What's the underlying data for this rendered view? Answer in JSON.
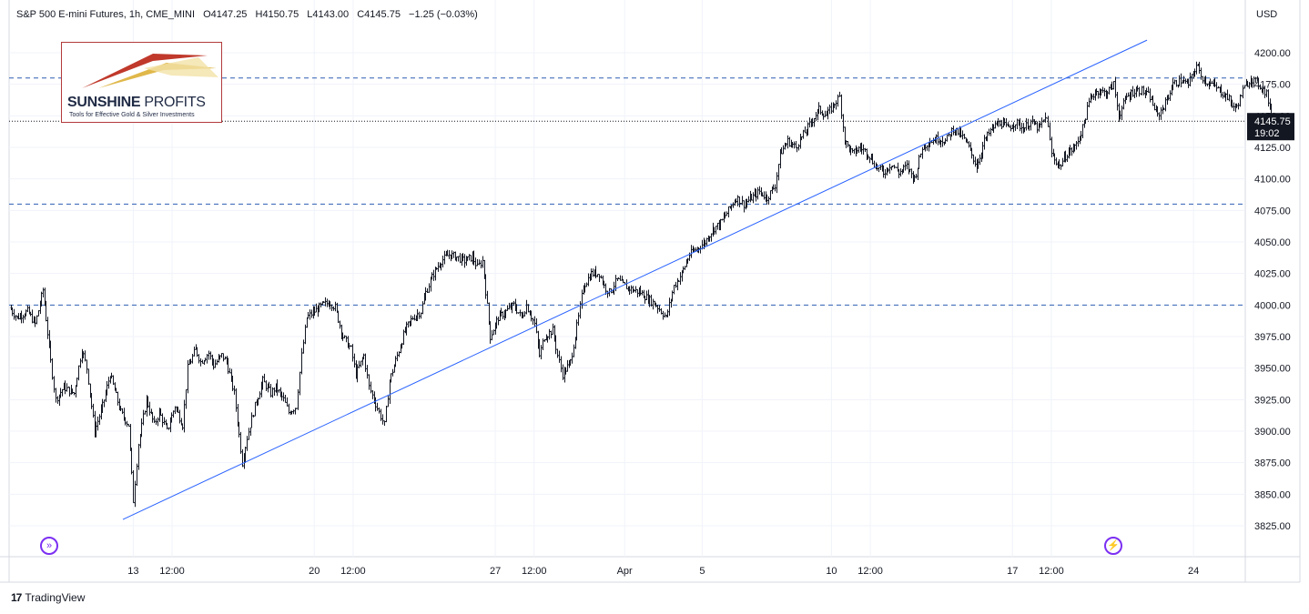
{
  "header": {
    "symbol": "S&P 500 E-mini Futures, 1h, CME_MINI",
    "open": "O4147.25",
    "high": "H4150.75",
    "low": "L4143.00",
    "close": "C4145.75",
    "change": "−1.25 (−0.03%)"
  },
  "currency": "USD",
  "logo": {
    "name_bold": "SUNSHINE",
    "name_light": " PROFITS",
    "tagline": "Tools for Effective Gold & Silver Investments"
  },
  "price_label": {
    "price": "4145.75",
    "countdown": "19:02"
  },
  "branding": "TradingView",
  "chart_data": {
    "type": "candlestick",
    "title": "S&P 500 E-mini Futures, 1h, CME_MINI",
    "y_ticks": [
      3825,
      3850,
      3875,
      3900,
      3925,
      3950,
      3975,
      4000,
      4025,
      4050,
      4075,
      4100,
      4125,
      4150,
      4175,
      4200
    ],
    "y_tick_labels": [
      "3825.00",
      "3850.00",
      "3875.00",
      "3900.00",
      "3925.00",
      "3950.00",
      "3975.00",
      "4000.00",
      "4025.00",
      "4050.00",
      "4075.00",
      "4100.00",
      "4125.00",
      "4150.00",
      "4175.00",
      "4200.00"
    ],
    "ylim": [
      3806,
      4230
    ],
    "x_ticks": [
      {
        "label": "13",
        "day": 13.0
      },
      {
        "label": "12:00",
        "day": 14.5
      },
      {
        "label": "20",
        "day": 20.0
      },
      {
        "label": "12:00",
        "day": 21.5
      },
      {
        "label": "27",
        "day": 27.0
      },
      {
        "label": "12:00",
        "day": 28.5
      },
      {
        "label": "Apr",
        "day": 32.0
      },
      {
        "label": "5",
        "day": 35.0
      },
      {
        "label": "10",
        "day": 40.0
      },
      {
        "label": "12:00",
        "day": 41.5
      },
      {
        "label": "17",
        "day": 47.0
      },
      {
        "label": "12:00",
        "day": 48.5
      },
      {
        "label": "24",
        "day": 54.0
      }
    ],
    "horizontal_levels": [
      4180,
      4080,
      4000
    ],
    "trendline": {
      "from": {
        "day": 12.6,
        "price": 3830
      },
      "to": {
        "day": 52.2,
        "price": 4210
      }
    },
    "last_price": 4145.75,
    "price_path": [
      [
        8.2,
        3998
      ],
      [
        8.5,
        3990
      ],
      [
        8.9,
        3995
      ],
      [
        9.2,
        3985
      ],
      [
        9.5,
        4012
      ],
      [
        9.8,
        3955
      ],
      [
        10.0,
        3925
      ],
      [
        10.3,
        3935
      ],
      [
        10.7,
        3930
      ],
      [
        11.0,
        3965
      ],
      [
        11.2,
        3950
      ],
      [
        11.5,
        3900
      ],
      [
        11.8,
        3920
      ],
      [
        12.1,
        3945
      ],
      [
        12.5,
        3915
      ],
      [
        12.8,
        3905
      ],
      [
        13.0,
        3845
      ],
      [
        13.2,
        3890
      ],
      [
        13.5,
        3925
      ],
      [
        13.8,
        3905
      ],
      [
        14.0,
        3915
      ],
      [
        14.3,
        3900
      ],
      [
        14.6,
        3920
      ],
      [
        14.9,
        3905
      ],
      [
        15.1,
        3950
      ],
      [
        15.4,
        3965
      ],
      [
        15.6,
        3955
      ],
      [
        15.9,
        3962
      ],
      [
        16.1,
        3952
      ],
      [
        16.4,
        3960
      ],
      [
        16.6,
        3955
      ],
      [
        16.9,
        3930
      ],
      [
        17.2,
        3875
      ],
      [
        17.4,
        3895
      ],
      [
        17.7,
        3920
      ],
      [
        18.0,
        3940
      ],
      [
        18.3,
        3930
      ],
      [
        18.5,
        3935
      ],
      [
        18.8,
        3925
      ],
      [
        19.0,
        3915
      ],
      [
        19.3,
        3920
      ],
      [
        19.5,
        3960
      ],
      [
        19.7,
        3990
      ],
      [
        20.0,
        3995
      ],
      [
        20.3,
        4000
      ],
      [
        20.6,
        4002
      ],
      [
        20.8,
        3998
      ],
      [
        21.1,
        3975
      ],
      [
        21.4,
        3965
      ],
      [
        21.6,
        3945
      ],
      [
        21.9,
        3960
      ],
      [
        22.1,
        3935
      ],
      [
        22.3,
        3925
      ],
      [
        22.5,
        3915
      ],
      [
        22.7,
        3905
      ],
      [
        22.9,
        3940
      ],
      [
        23.2,
        3960
      ],
      [
        23.5,
        3980
      ],
      [
        23.8,
        3990
      ],
      [
        24.1,
        3995
      ],
      [
        24.3,
        4010
      ],
      [
        24.6,
        4025
      ],
      [
        24.9,
        4035
      ],
      [
        25.2,
        4040
      ],
      [
        25.5,
        4038
      ],
      [
        25.8,
        4035
      ],
      [
        26.1,
        4038
      ],
      [
        26.3,
        4030
      ],
      [
        26.5,
        4035
      ],
      [
        26.8,
        3975
      ],
      [
        27.1,
        3990
      ],
      [
        27.4,
        3995
      ],
      [
        27.7,
        4000
      ],
      [
        28.0,
        3990
      ],
      [
        28.2,
        4000
      ],
      [
        28.5,
        3985
      ],
      [
        28.7,
        3960
      ],
      [
        28.9,
        3975
      ],
      [
        29.2,
        3980
      ],
      [
        29.4,
        3960
      ],
      [
        29.6,
        3945
      ],
      [
        29.9,
        3955
      ],
      [
        30.2,
        3990
      ],
      [
        30.4,
        4015
      ],
      [
        30.7,
        4025
      ],
      [
        31.0,
        4025
      ],
      [
        31.2,
        4015
      ],
      [
        31.4,
        4010
      ],
      [
        31.7,
        4020
      ],
      [
        32.0,
        4015
      ],
      [
        32.3,
        4012
      ],
      [
        32.6,
        4010
      ],
      [
        32.9,
        4005
      ],
      [
        33.2,
        4000
      ],
      [
        33.4,
        3995
      ],
      [
        33.6,
        3990
      ],
      [
        33.9,
        4015
      ],
      [
        34.2,
        4025
      ],
      [
        34.5,
        4040
      ],
      [
        34.8,
        4045
      ],
      [
        35.1,
        4050
      ],
      [
        35.4,
        4060
      ],
      [
        35.7,
        4065
      ],
      [
        36.0,
        4075
      ],
      [
        36.3,
        4085
      ],
      [
        36.6,
        4080
      ],
      [
        36.9,
        4085
      ],
      [
        37.2,
        4090
      ],
      [
        37.5,
        4085
      ],
      [
        37.8,
        4095
      ],
      [
        38.0,
        4120
      ],
      [
        38.3,
        4130
      ],
      [
        38.6,
        4125
      ],
      [
        38.9,
        4135
      ],
      [
        39.2,
        4145
      ],
      [
        39.5,
        4155
      ],
      [
        39.8,
        4150
      ],
      [
        40.1,
        4160
      ],
      [
        40.3,
        4165
      ],
      [
        40.5,
        4130
      ],
      [
        40.8,
        4120
      ],
      [
        41.1,
        4125
      ],
      [
        41.4,
        4120
      ],
      [
        41.7,
        4110
      ],
      [
        42.0,
        4105
      ],
      [
        42.3,
        4112
      ],
      [
        42.6,
        4105
      ],
      [
        42.9,
        4110
      ],
      [
        43.2,
        4100
      ],
      [
        43.5,
        4125
      ],
      [
        43.8,
        4130
      ],
      [
        44.1,
        4132
      ],
      [
        44.4,
        4130
      ],
      [
        44.7,
        4140
      ],
      [
        45.0,
        4135
      ],
      [
        45.3,
        4125
      ],
      [
        45.6,
        4110
      ],
      [
        45.9,
        4130
      ],
      [
        46.2,
        4140
      ],
      [
        46.5,
        4145
      ],
      [
        46.8,
        4140
      ],
      [
        47.1,
        4145
      ],
      [
        47.4,
        4140
      ],
      [
        47.7,
        4145
      ],
      [
        48.0,
        4140
      ],
      [
        48.3,
        4150
      ],
      [
        48.5,
        4120
      ],
      [
        48.8,
        4110
      ],
      [
        49.1,
        4120
      ],
      [
        49.4,
        4125
      ],
      [
        49.7,
        4140
      ],
      [
        50.0,
        4165
      ],
      [
        50.3,
        4170
      ],
      [
        50.6,
        4168
      ],
      [
        50.9,
        4175
      ],
      [
        51.1,
        4150
      ],
      [
        51.4,
        4165
      ],
      [
        51.7,
        4170
      ],
      [
        52.0,
        4170
      ],
      [
        52.3,
        4165
      ],
      [
        52.6,
        4150
      ],
      [
        52.9,
        4160
      ],
      [
        53.2,
        4175
      ],
      [
        53.5,
        4178
      ],
      [
        53.8,
        4175
      ],
      [
        54.1,
        4190
      ],
      [
        54.4,
        4178
      ],
      [
        54.7,
        4175
      ],
      [
        55.0,
        4170
      ],
      [
        55.3,
        4165
      ],
      [
        55.6,
        4155
      ],
      [
        55.9,
        4170
      ],
      [
        56.2,
        4180
      ],
      [
        56.5,
        4175
      ],
      [
        56.8,
        4168
      ],
      [
        57.0,
        4148
      ],
      [
        57.2,
        4145
      ]
    ]
  }
}
